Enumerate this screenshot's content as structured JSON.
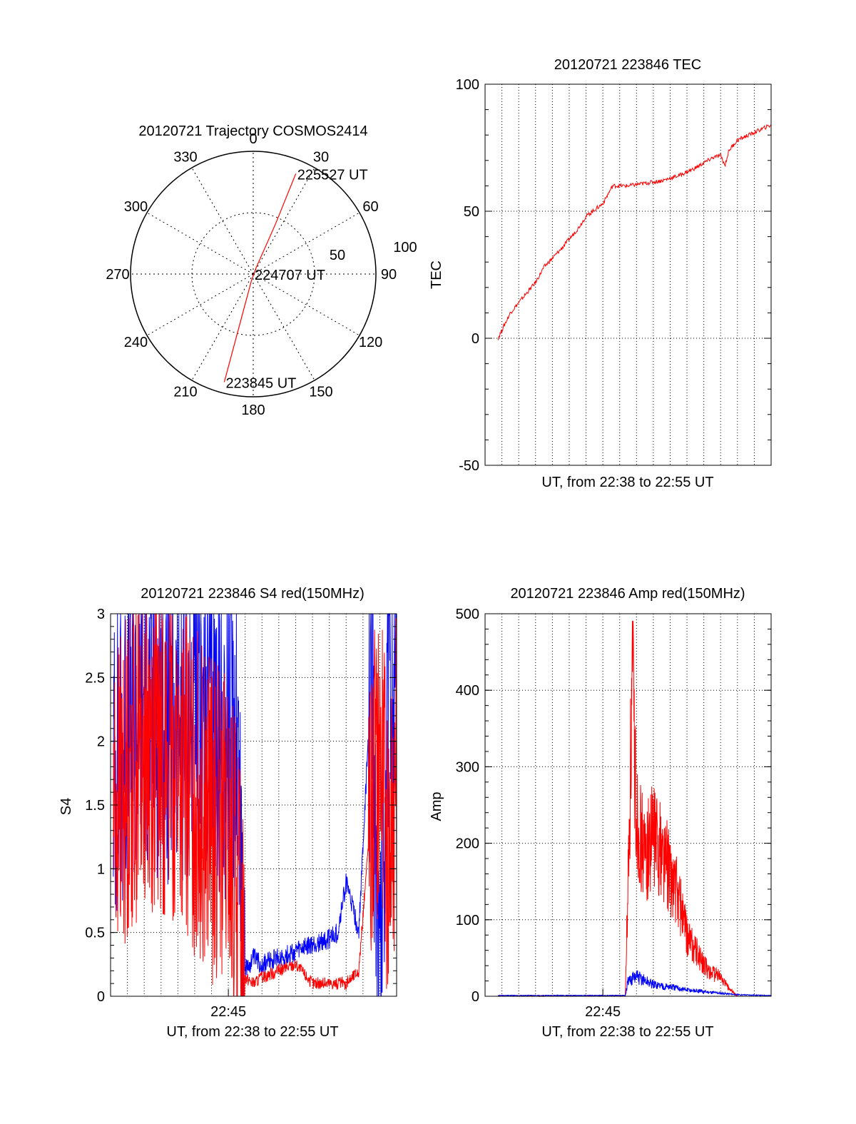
{
  "chart_data": [
    {
      "type": "polar",
      "title": "20120721 Trajectory COSMOS2414",
      "azimuth_labels": [
        "0",
        "30",
        "60",
        "90",
        "120",
        "150",
        "180",
        "210",
        "240",
        "270",
        "300",
        "330"
      ],
      "radial_labels": [
        "50",
        "100"
      ],
      "grid": true,
      "trajectory": {
        "color": "#ff0000",
        "points": [
          {
            "az": 195,
            "zd": 82
          },
          {
            "az": 195,
            "zd": 40
          },
          {
            "az": 195,
            "zd": 5
          },
          {
            "az": 25,
            "zd": 5
          },
          {
            "az": 24,
            "zd": 40
          },
          {
            "az": 23,
            "zd": 80
          }
        ],
        "annotations": [
          {
            "label": "223845 UT",
            "az": 195,
            "zd": 82
          },
          {
            "label": "224707 UT",
            "az": 0,
            "zd": 0
          },
          {
            "label": "225527 UT",
            "az": 23,
            "zd": 80
          }
        ]
      }
    },
    {
      "type": "line",
      "title": "20120721 223846 TEC",
      "xlabel": "UT, from 22:38 to 22:55 UT",
      "ylabel": "TEC",
      "xlim": [
        "22:38",
        "22:55"
      ],
      "ylim": [
        -50,
        100
      ],
      "yticks": [
        "-50",
        "0",
        "50",
        "100"
      ],
      "grid": true,
      "series": [
        {
          "color": "#ff0000",
          "x": [
            "22:38:46",
            "22:39:30",
            "22:40:30",
            "22:41:00",
            "22:41:30",
            "22:42:30",
            "22:43:30",
            "22:44:00",
            "22:45:00",
            "22:45:35",
            "22:46:30",
            "22:47:30",
            "22:48:30",
            "22:49:30",
            "22:50:30",
            "22:51:30",
            "22:52:00",
            "22:52:15",
            "22:52:30",
            "22:53:00",
            "22:54:00",
            "22:55:00"
          ],
          "values": [
            0,
            10,
            18,
            22,
            28,
            35,
            43,
            48,
            53,
            60,
            60,
            61,
            62,
            64,
            67,
            71,
            72,
            68,
            74,
            78,
            81,
            84
          ]
        }
      ]
    },
    {
      "type": "line",
      "title": "20120721 223846 S4 red(150MHz)",
      "xlabel": "UT, from 22:38 to 22:55 UT",
      "ylabel": "S4",
      "xlim": [
        "22:38",
        "22:55"
      ],
      "ylim": [
        0,
        3
      ],
      "yticks": [
        "0",
        "0.5",
        "1",
        "1.5",
        "2",
        "2.5",
        "3"
      ],
      "xticks": [
        "22:45"
      ],
      "grid": true,
      "series": [
        {
          "color": "#0000ff",
          "x": [
            "22:38:10",
            "22:40:00",
            "22:42:00",
            "22:44:00",
            "22:45:00",
            "22:45:30",
            "22:46:00",
            "22:46:30",
            "22:47:00",
            "22:48:00",
            "22:49:00",
            "22:50:00",
            "22:51:00",
            "22:51:30",
            "22:52:00",
            "22:52:45",
            "22:53:30",
            "22:54:00",
            "22:54:30",
            "22:55:00"
          ],
          "values": [
            1.8,
            2.3,
            2.1,
            2.2,
            2.0,
            2.2,
            0.2,
            0.3,
            0.25,
            0.3,
            0.35,
            0.4,
            0.45,
            0.5,
            0.9,
            0.5,
            2.5,
            0.1,
            2.6,
            2.3
          ]
        },
        {
          "color": "#ff0000",
          "x": [
            "22:38:10",
            "22:40:00",
            "22:42:00",
            "22:44:00",
            "22:45:00",
            "22:45:30",
            "22:46:00",
            "22:46:30",
            "22:47:00",
            "22:48:00",
            "22:49:00",
            "22:50:00",
            "22:51:00",
            "22:51:30",
            "22:52:00",
            "22:52:45",
            "22:53:30",
            "22:54:00",
            "22:54:30",
            "22:55:00"
          ],
          "values": [
            1.5,
            2.0,
            1.8,
            1.4,
            1.2,
            0.9,
            0.15,
            0.1,
            0.15,
            0.2,
            0.25,
            0.1,
            0.1,
            0.1,
            0.1,
            0.2,
            1.5,
            2.0,
            1.2,
            1.8
          ]
        }
      ]
    },
    {
      "type": "line",
      "title": "20120721 223846 Amp red(150MHz)",
      "xlabel": "UT, from 22:38 to 22:55 UT",
      "ylabel": "Amp",
      "xlim": [
        "22:38",
        "22:55"
      ],
      "ylim": [
        0,
        500
      ],
      "yticks": [
        "0",
        "100",
        "200",
        "300",
        "400",
        "500"
      ],
      "xticks": [
        "22:45"
      ],
      "grid": true,
      "series": [
        {
          "color": "#ff0000",
          "x": [
            "22:38:46",
            "22:46:20",
            "22:46:30",
            "22:46:45",
            "22:47:00",
            "22:47:30",
            "22:48:00",
            "22:48:30",
            "22:49:00",
            "22:49:30",
            "22:50:00",
            "22:50:30",
            "22:51:00",
            "22:51:30",
            "22:52:00",
            "22:52:30",
            "22:53:00"
          ],
          "values": [
            0,
            0,
            150,
            400,
            240,
            180,
            210,
            190,
            160,
            130,
            80,
            60,
            40,
            30,
            25,
            10,
            0
          ]
        },
        {
          "color": "#0000ff",
          "x": [
            "22:38:46",
            "22:46:20",
            "22:46:30",
            "22:47:00",
            "22:48:00",
            "22:49:00",
            "22:50:00",
            "22:51:00",
            "22:52:00",
            "22:53:00",
            "22:55:00"
          ],
          "values": [
            1,
            1,
            20,
            25,
            15,
            12,
            8,
            6,
            4,
            2,
            1
          ]
        }
      ]
    }
  ]
}
